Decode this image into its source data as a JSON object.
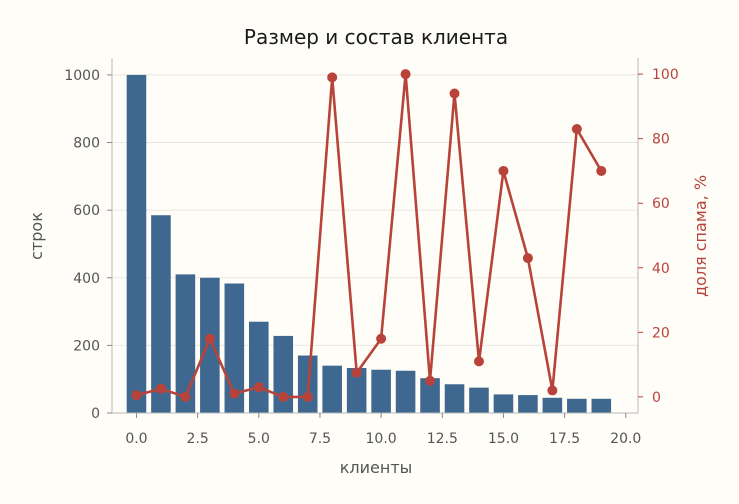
{
  "chart_data": {
    "type": "bar+line",
    "title": "Размер и состав клиента",
    "xlabel": "клиенты",
    "ylabel_left": "строк",
    "ylabel_right": "доля спама, %",
    "xlim": [
      -1,
      20.5
    ],
    "ylim_left": [
      0,
      1050
    ],
    "ylim_right": [
      -5,
      105
    ],
    "x_ticks": [
      "0.0",
      "2.5",
      "5.0",
      "7.5",
      "10.0",
      "12.5",
      "15.0",
      "17.5",
      "20.0"
    ],
    "x_tick_values": [
      0,
      2.5,
      5,
      7.5,
      10,
      12.5,
      15,
      17.5,
      20
    ],
    "y_ticks_left": [
      0,
      200,
      400,
      600,
      800,
      1000
    ],
    "y_ticks_right": [
      0,
      20,
      40,
      60,
      80,
      100
    ],
    "grid": true,
    "colors": {
      "bars": "#3f6891",
      "line": "#b8433a",
      "left_axis": "#555555",
      "right_axis": "#b8433a"
    },
    "series": [
      {
        "kind": "bar",
        "axis": "left",
        "x": [
          0,
          1,
          2,
          3,
          4,
          5,
          6,
          7,
          8,
          9,
          10,
          11,
          12,
          13,
          14,
          15,
          16,
          17,
          18,
          19
        ],
        "values": [
          1000,
          585,
          410,
          400,
          383,
          270,
          228,
          170,
          140,
          133,
          128,
          125,
          103,
          85,
          75,
          55,
          53,
          45,
          42,
          42
        ]
      },
      {
        "kind": "line",
        "axis": "right",
        "x": [
          0,
          1,
          2,
          3,
          4,
          5,
          6,
          7,
          8,
          9,
          10,
          11,
          12,
          13,
          14,
          15,
          16,
          17,
          18,
          19
        ],
        "values": [
          0.5,
          2.5,
          0,
          18,
          1,
          3,
          0,
          0,
          99,
          7.5,
          18,
          100,
          5,
          94,
          11,
          70,
          43,
          2,
          83,
          70
        ]
      }
    ]
  }
}
